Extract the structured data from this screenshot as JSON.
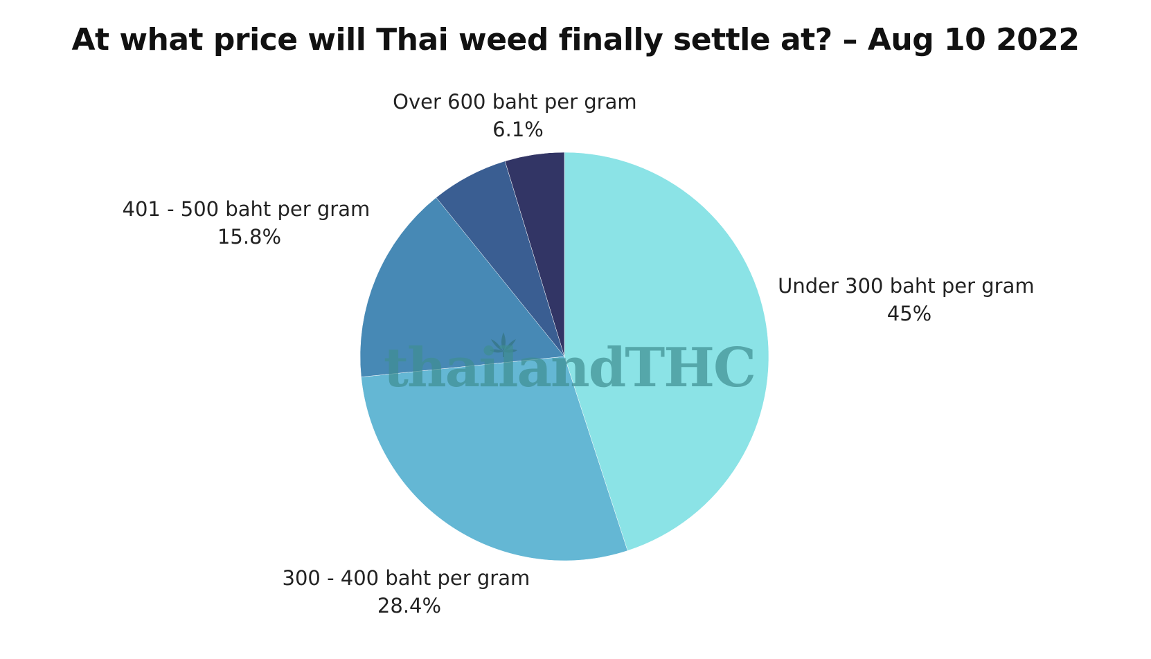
{
  "chart_data": {
    "type": "pie",
    "title": "At what price will Thai weed finally settle at? – Aug 10 2022",
    "start_angle_deg": 0,
    "direction": "clockwise",
    "slices": [
      {
        "label": "Under 300 baht per gram",
        "value": 45,
        "value_label": "45%",
        "color": "#8be3e6"
      },
      {
        "label": "300 - 400 baht per gram",
        "value": 28.4,
        "value_label": "28.4%",
        "color": "#64b7d4"
      },
      {
        "label": "401 - 500 baht per gram",
        "value": 15.8,
        "value_label": "15.8%",
        "color": "#4789b5"
      },
      {
        "label": "Over 600 baht per gram",
        "value": 6.1,
        "value_label": "6.1%",
        "color": "#3a5e92"
      },
      {
        "label": "",
        "value": 4.7,
        "value_label": "",
        "color": "#323565"
      }
    ]
  },
  "watermark": {
    "text": "thailandTHC",
    "icon": "cannabis-leaf-icon",
    "color": "#3f8e92"
  }
}
